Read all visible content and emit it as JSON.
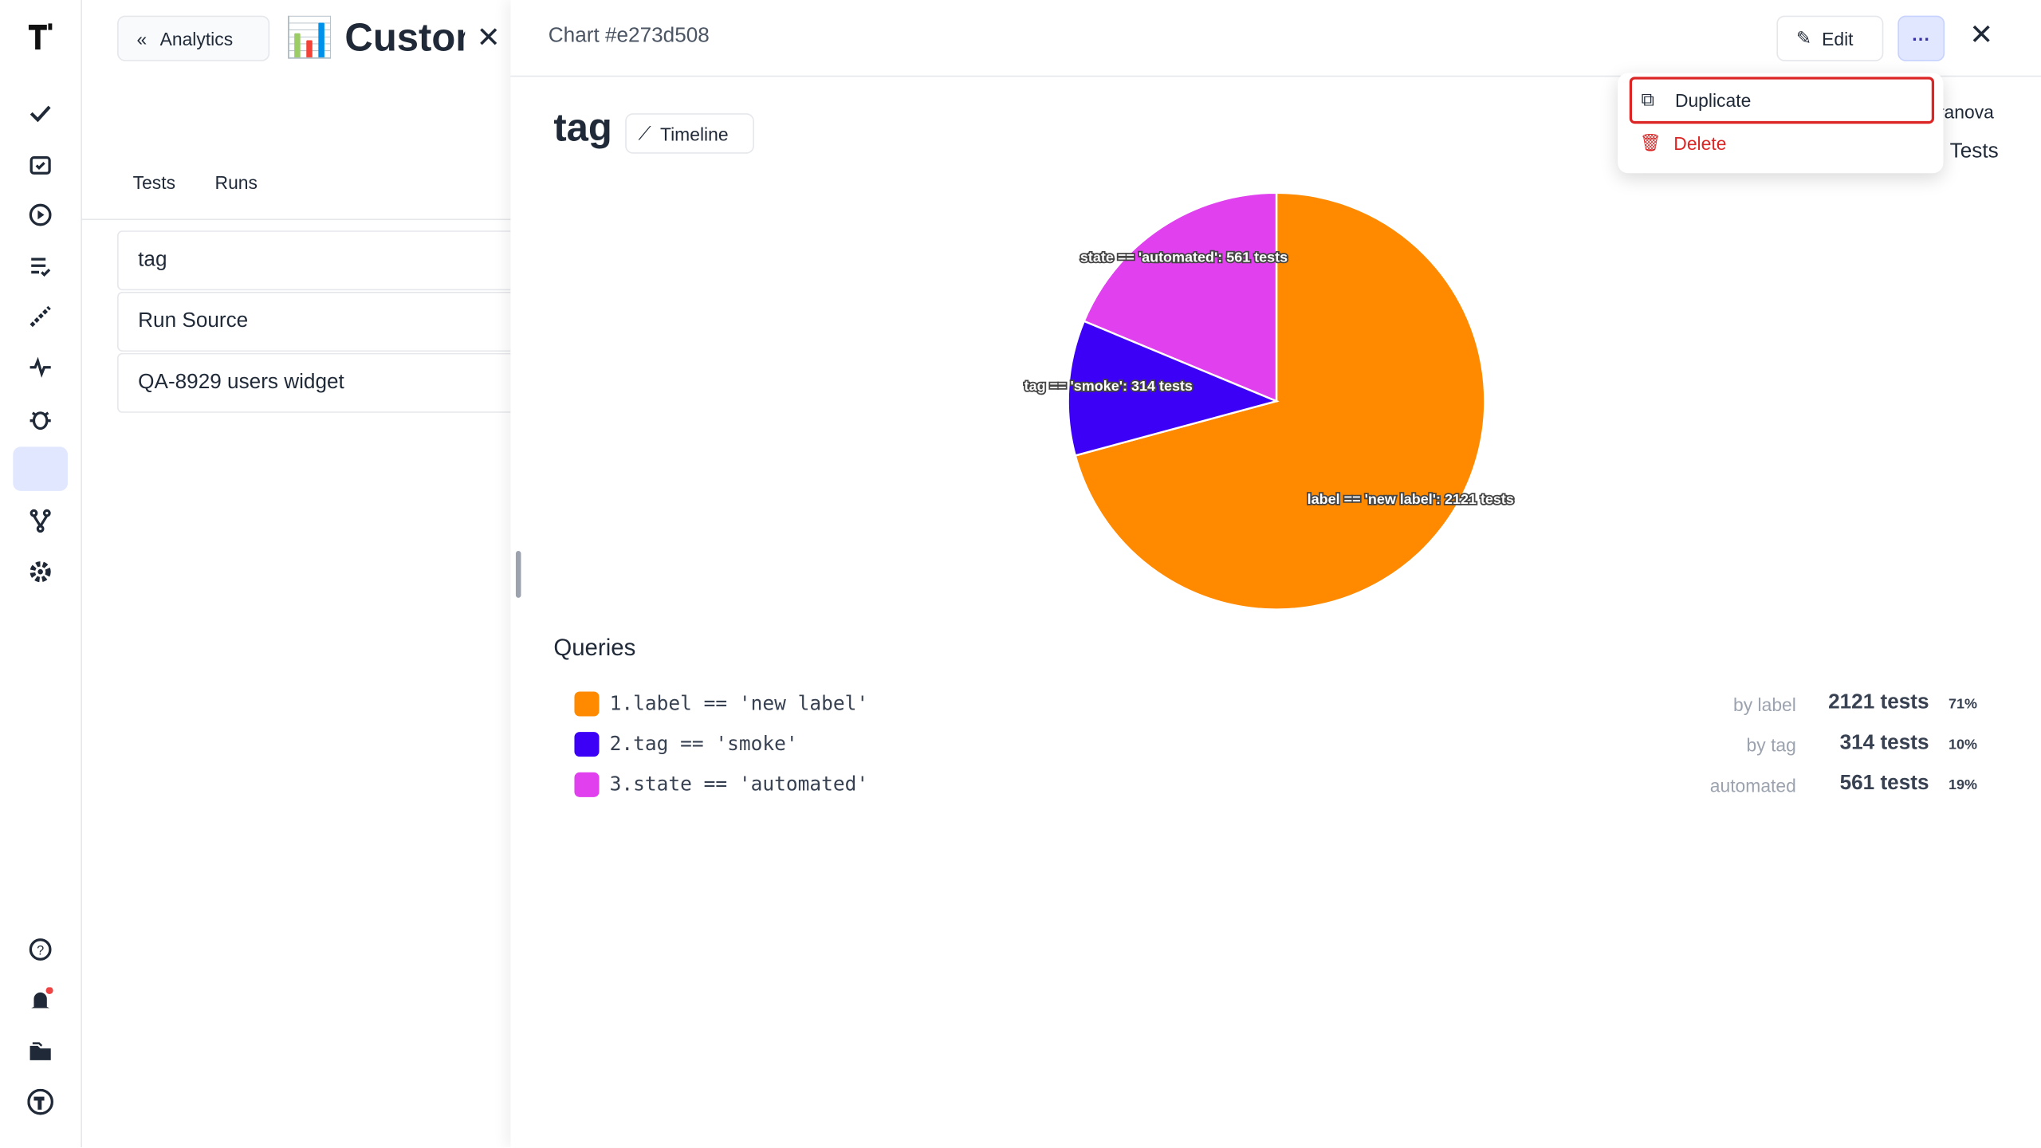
{
  "sidebar_left": {
    "active_item": 7
  },
  "panel": {
    "back_button": "Analytics",
    "title": "📊 Custom",
    "tabs": [
      "Tests",
      "Runs"
    ],
    "items": [
      "tag",
      "Run Source",
      "QA-8929 users widget"
    ]
  },
  "drawer": {
    "header": "Chart #e273d508",
    "edit_button": "Edit",
    "chart_title": "tag",
    "timeline_button": "Timeline",
    "behind_menu": [
      "ranova",
      "Tests"
    ],
    "menu": {
      "items": [
        "Duplicate",
        "Delete"
      ]
    },
    "chart": {
      "type": "pie",
      "slices": [
        {
          "value": 2121,
          "color": "#ff8a00",
          "label": "label == 'new label': 2121 tests"
        },
        {
          "value": 314,
          "color": "#3b00f5",
          "label": "tag == 'smoke': 314 tests"
        },
        {
          "value": 561,
          "color": "#e040ee",
          "label": "state == 'automated': 561 tests"
        }
      ]
    },
    "queries_title": "Queries",
    "queries": [
      {
        "query": "1.label == 'new label'",
        "by": "by label",
        "count": "2121 tests",
        "percent": "71%"
      },
      {
        "query": "2.tag == 'smoke'",
        "by": "by tag",
        "count": "314 tests",
        "percent": "10%"
      },
      {
        "query": "3.state == 'automated'",
        "by": "automated",
        "count": "561 tests",
        "percent": "19%"
      }
    ]
  }
}
